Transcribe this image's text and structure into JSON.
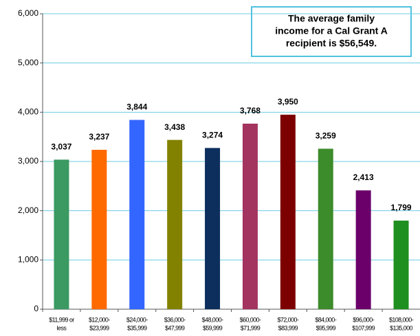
{
  "chart_data": {
    "type": "bar",
    "annotation": [
      "The average family",
      "income for a Cal Grant A",
      "recipient is $56,549."
    ],
    "categories": [
      [
        "$11,999 or",
        "less"
      ],
      [
        "$12,000-",
        "$23,999"
      ],
      [
        "$24,000-",
        "$35,999"
      ],
      [
        "$36,000-",
        "$47,999"
      ],
      [
        "$48,000-",
        "$59,999"
      ],
      [
        "$60,000-",
        "$71,999"
      ],
      [
        "$72,000-",
        "$83,999"
      ],
      [
        "$84,000-",
        "$95,999"
      ],
      [
        "$96,000-",
        "$107,999"
      ],
      [
        "$108,000-",
        "$135,000"
      ]
    ],
    "values": [
      3037,
      3237,
      3844,
      3438,
      3274,
      3768,
      3950,
      3259,
      2413,
      1799
    ],
    "value_labels": [
      "3,037",
      "3,237",
      "3,844",
      "3,438",
      "3,274",
      "3,768",
      "3,950",
      "3,259",
      "2,413",
      "1,799"
    ],
    "colors": [
      "#3a9a62",
      "#ff6a00",
      "#3366ff",
      "#828200",
      "#0d2f5e",
      "#a3335f",
      "#7d0000",
      "#3d8c2b",
      "#6b006b",
      "#1f8f1f"
    ],
    "ylim": [
      0,
      6000
    ],
    "yticks": [
      0,
      {
        "value": 1000,
        "label": "1,000"
      },
      {
        "value": 2000,
        "label": "2,000"
      },
      {
        "value": 3000,
        "label": "3,000"
      },
      {
        "value": 4000,
        "label": "4,000"
      },
      {
        "value": 5000,
        "label": "5,000"
      },
      {
        "value": 6000,
        "label": "6,000"
      }
    ],
    "grid": true
  }
}
